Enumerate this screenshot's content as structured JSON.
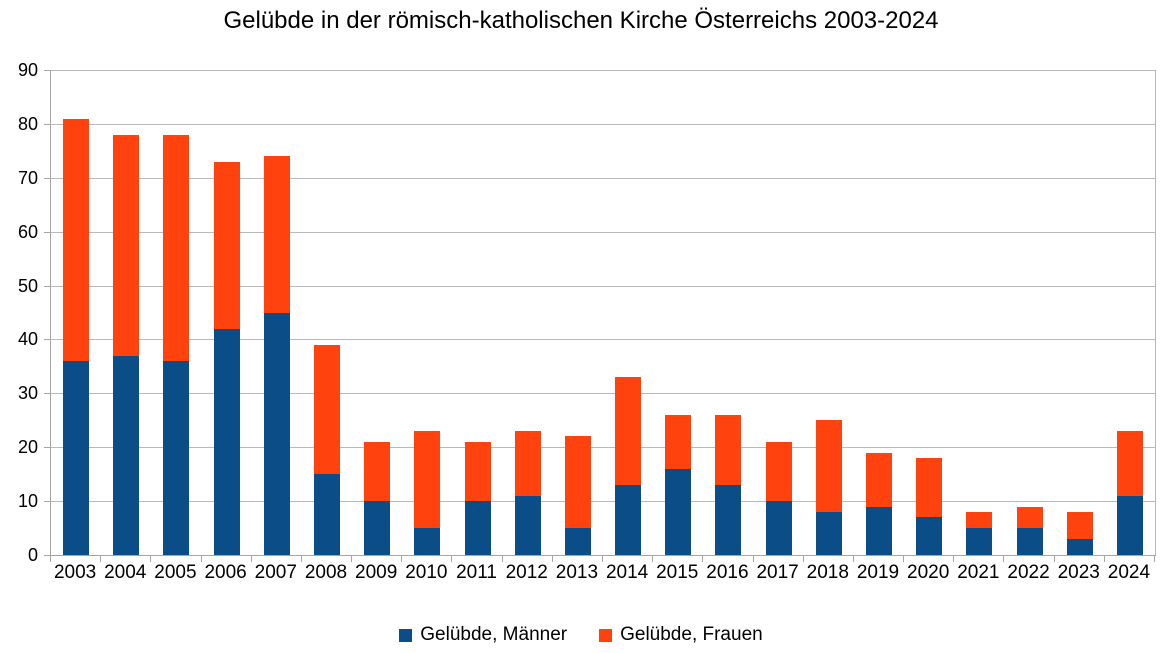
{
  "chart_data": {
    "type": "bar",
    "stacked": true,
    "title": "Gelübde in der römisch-katholischen Kirche Österreichs 2003-2024",
    "categories": [
      "2003",
      "2004",
      "2005",
      "2006",
      "2007",
      "2008",
      "2009",
      "2010",
      "2011",
      "2012",
      "2013",
      "2014",
      "2015",
      "2016",
      "2017",
      "2018",
      "2019",
      "2020",
      "2021",
      "2022",
      "2023",
      "2024"
    ],
    "series": [
      {
        "name": "Gelübde, Männer",
        "color": "#0b4d87",
        "values": [
          36,
          37,
          36,
          42,
          45,
          15,
          10,
          5,
          10,
          11,
          5,
          13,
          16,
          13,
          10,
          8,
          9,
          7,
          5,
          5,
          3,
          11
        ]
      },
      {
        "name": "Gelübde, Frauen",
        "color": "#ff420e",
        "values": [
          45,
          41,
          42,
          31,
          29,
          24,
          11,
          18,
          11,
          12,
          17,
          20,
          10,
          13,
          11,
          17,
          10,
          11,
          3,
          4,
          5,
          12
        ]
      }
    ],
    "totals": [
      81,
      78,
      78,
      73,
      74,
      39,
      21,
      23,
      21,
      23,
      22,
      33,
      26,
      26,
      21,
      25,
      19,
      18,
      8,
      9,
      8,
      23
    ],
    "ylim": [
      0,
      90
    ],
    "yticks": [
      0,
      10,
      20,
      30,
      40,
      50,
      60,
      70,
      80,
      90
    ],
    "grid": true,
    "legend_position": "bottom",
    "colors": {
      "grid": "#b9b9b9",
      "axis": "#a6a6a6",
      "text": "#000000",
      "background": "#ffffff"
    }
  }
}
